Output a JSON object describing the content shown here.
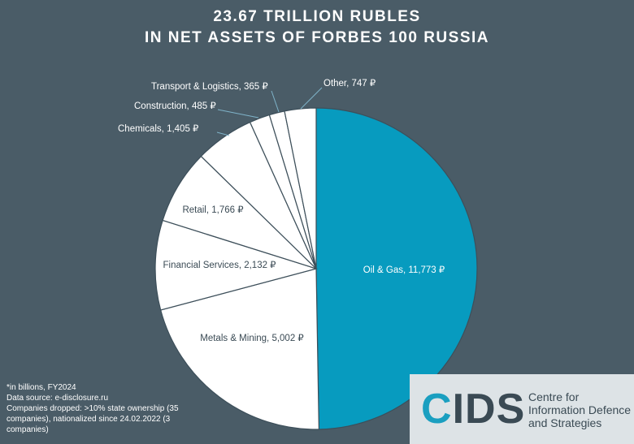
{
  "chart_data": {
    "type": "pie",
    "title_line1": "23.67 TRILLION RUBLES",
    "title_line2": "IN NET ASSETS OF FORBES 100 RUSSIA",
    "slices": [
      {
        "label": "Oil & Gas, 11,773 ₽",
        "value": 11773
      },
      {
        "label": "Metals & Mining, 5,002 ₽",
        "value": 5002
      },
      {
        "label": "Financial Services, 2,132 ₽",
        "value": 2132
      },
      {
        "label": "Retail, 1,766 ₽",
        "value": 1766
      },
      {
        "label": "Chemicals, 1,405 ₽",
        "value": 1405
      },
      {
        "label": "Construction, 485 ₽",
        "value": 485
      },
      {
        "label": "Transport & Logistics, 365 ₽",
        "value": 365
      },
      {
        "label": "Other, 747 ₽",
        "value": 747
      }
    ]
  },
  "colors": {
    "background": "#4a5c67",
    "highlight": "#079bbf",
    "slice": "#ffffff",
    "slice_border": "#3d4f5a",
    "leader": "#7fb3c9"
  },
  "footnotes": [
    "*in billions, FY2024",
    "Data source: e-disclosure.ru",
    "Companies dropped: >10% state ownership (35",
    "companies), nationalized since 24.02.2022 (3",
    "companies)"
  ],
  "logo": {
    "word_c": "C",
    "word_rest": "IDS",
    "line1": "Centre for",
    "line2": "Information Defence",
    "line3": "and Strategies"
  }
}
